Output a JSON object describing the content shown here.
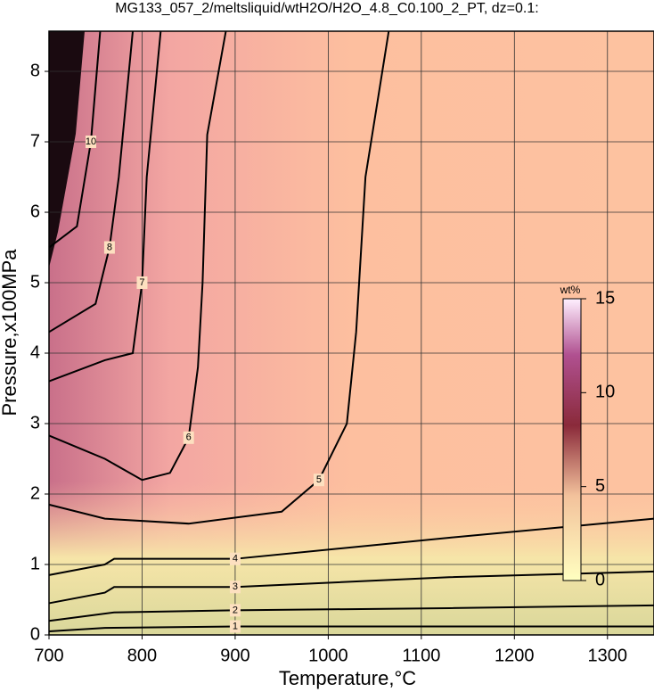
{
  "chart_data": {
    "type": "contour",
    "title": "MG133_057_2/meltsliquid/wtH2O/H2O_4.8_C0.100_2_PT, dz=0.1:",
    "xlabel": "Temperature,°C",
    "ylabel": "Pressure,x100MPa",
    "xlim": [
      700,
      1350
    ],
    "ylim": [
      0,
      8.57
    ],
    "xticks": [
      700,
      800,
      900,
      1000,
      1100,
      1200,
      1300
    ],
    "yticks": [
      0,
      1,
      2,
      3,
      4,
      5,
      6,
      7,
      8
    ],
    "grid": true,
    "colorbar": {
      "title": "wt%",
      "lim": [
        0,
        15
      ],
      "ticks": [
        0,
        5,
        10,
        15
      ]
    },
    "contours": [
      {
        "level": 1,
        "x": [
          700,
          760,
          900,
          1350
        ],
        "y": [
          0.05,
          0.1,
          0.12,
          0.12
        ]
      },
      {
        "level": 2,
        "x": [
          700,
          770,
          900,
          1130,
          1350
        ],
        "y": [
          0.2,
          0.32,
          0.35,
          0.38,
          0.42
        ]
      },
      {
        "level": 3,
        "x": [
          700,
          760,
          770,
          900,
          1130,
          1350
        ],
        "y": [
          0.45,
          0.6,
          0.68,
          0.68,
          0.82,
          0.9
        ]
      },
      {
        "level": 4,
        "x": [
          700,
          760,
          770,
          900,
          1130,
          1350
        ],
        "y": [
          0.85,
          1.0,
          1.08,
          1.08,
          1.38,
          1.65
        ]
      },
      {
        "level": 5,
        "x": [
          700,
          760,
          850,
          950,
          990,
          1020,
          1030,
          1040,
          1065
        ],
        "y": [
          1.85,
          1.65,
          1.58,
          1.75,
          2.2,
          3.0,
          4.3,
          6.5,
          8.57
        ]
      },
      {
        "level": 6,
        "x": [
          700,
          760,
          800,
          830,
          850,
          860,
          865,
          870,
          890
        ],
        "y": [
          2.83,
          2.5,
          2.2,
          2.3,
          2.8,
          3.8,
          5.0,
          7.1,
          8.57
        ]
      },
      {
        "level": 7,
        "x": [
          700,
          760,
          790,
          800,
          805,
          820
        ],
        "y": [
          3.6,
          3.9,
          4.0,
          5.0,
          6.5,
          8.57
        ]
      },
      {
        "level": 8,
        "x": [
          700,
          750,
          765,
          775,
          790
        ],
        "y": [
          4.3,
          4.7,
          5.5,
          6.5,
          8.57
        ]
      },
      {
        "level": 10,
        "x": [
          700,
          730,
          745,
          755
        ],
        "y": [
          5.5,
          5.8,
          7.0,
          8.57
        ]
      }
    ]
  }
}
